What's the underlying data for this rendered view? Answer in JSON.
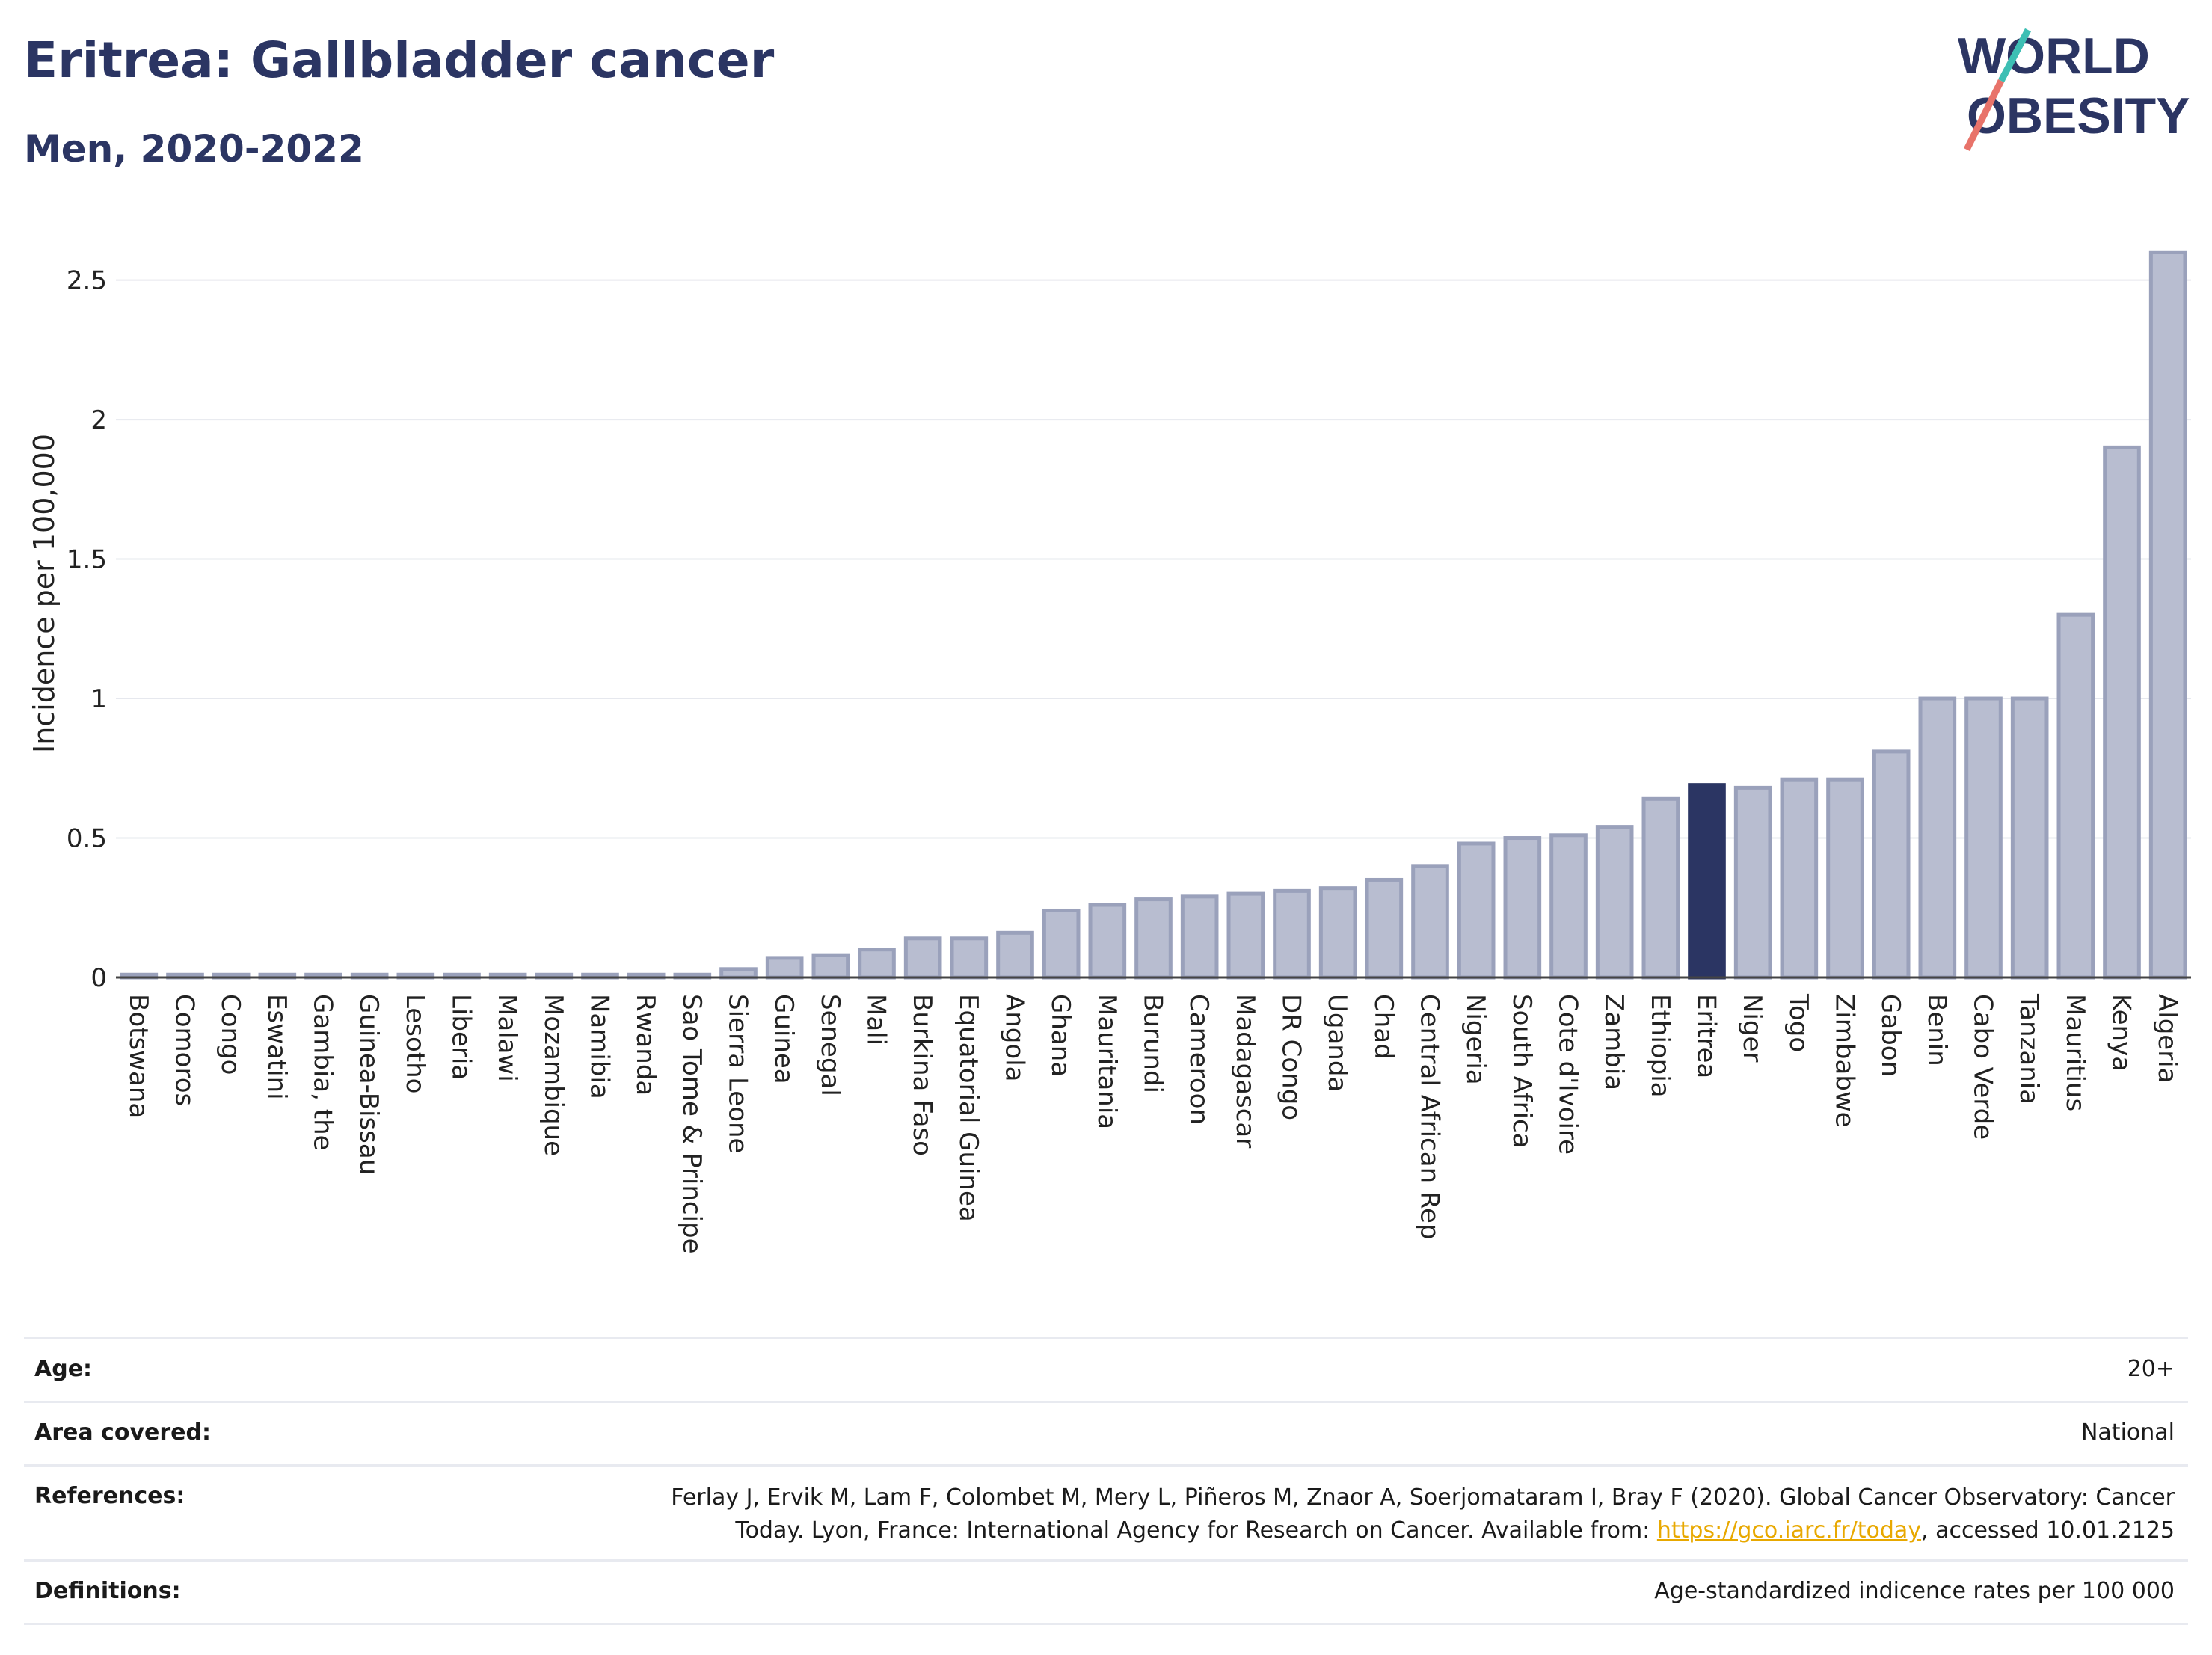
{
  "header": {
    "title": "Eritrea: Gallbladder cancer",
    "subtitle": "Men, 2020-2022"
  },
  "logo": {
    "line1": "WORLD",
    "line2": "OBESITY"
  },
  "chart_data": {
    "type": "bar",
    "ylabel": "Incidence per 100,000",
    "xlabel": "",
    "ylim": [
      0,
      2.7
    ],
    "yticks": [
      0,
      0.5,
      1,
      1.5,
      2,
      2.5
    ],
    "ytick_labels": [
      "0",
      "0.5",
      "1",
      "1.5",
      "2",
      "2.5"
    ],
    "grid": true,
    "highlight": "Eritrea",
    "colors": {
      "bar": "#b8bdd0",
      "bar_edge": "#9aa1bb",
      "highlight": "#2b3563"
    },
    "categories": [
      "Botswana",
      "Comoros",
      "Congo",
      "Eswatini",
      "Gambia, the",
      "Guinea-Bissau",
      "Lesotho",
      "Liberia",
      "Malawi",
      "Mozambique",
      "Namibia",
      "Rwanda",
      "Sao Tome & Principe",
      "Sierra Leone",
      "Guinea",
      "Senegal",
      "Mali",
      "Burkina Faso",
      "Equatorial Guinea",
      "Angola",
      "Ghana",
      "Mauritania",
      "Burundi",
      "Cameroon",
      "Madagascar",
      "DR Congo",
      "Uganda",
      "Chad",
      "Central African Rep",
      "Nigeria",
      "South Africa",
      "Cote d'Ivoire",
      "Zambia",
      "Ethiopia",
      "Eritrea",
      "Niger",
      "Togo",
      "Zimbabwe",
      "Gabon",
      "Benin",
      "Cabo Verde",
      "Tanzania",
      "Mauritius",
      "Kenya",
      "Algeria"
    ],
    "values": [
      0.01,
      0.01,
      0.01,
      0.01,
      0.01,
      0.01,
      0.01,
      0.01,
      0.01,
      0.01,
      0.01,
      0.01,
      0.01,
      0.03,
      0.07,
      0.08,
      0.1,
      0.14,
      0.14,
      0.16,
      0.24,
      0.26,
      0.28,
      0.29,
      0.3,
      0.31,
      0.32,
      0.35,
      0.4,
      0.48,
      0.5,
      0.51,
      0.54,
      0.64,
      0.69,
      0.68,
      0.71,
      0.71,
      0.81,
      1.0,
      1.0,
      1.0,
      1.3,
      1.9,
      2.6
    ]
  },
  "info": {
    "age": {
      "label": "Age:",
      "value": "20+"
    },
    "area": {
      "label": "Area covered:",
      "value": "National"
    },
    "references": {
      "label": "References:",
      "line1": "Ferlay J, Ervik M, Lam F, Colombet M, Mery L, Piñeros M, Znaor A, Soerjomataram I, Bray F (2020). Global Cancer Observatory: Cancer",
      "line2_pre": "Today. Lyon, France: International Agency for Research on Cancer. Available from: ",
      "link": "https://gco.iarc.fr/today",
      "line2_post": ", accessed 10.01.2125"
    },
    "definitions": {
      "label": "Definitions:",
      "value": "Age-standardized indicence rates per 100 000"
    }
  }
}
